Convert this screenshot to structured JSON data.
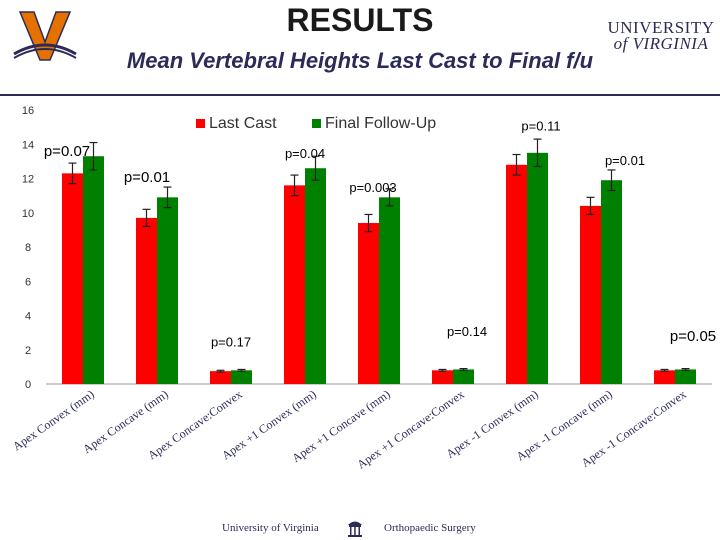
{
  "header": {
    "title": "RESULTS",
    "subtitle": "Mean Vertebral Heights Last Cast to Final f/u",
    "wordmark_line1": "UNIVERSITY",
    "wordmark_line2": "of VIRGINIA"
  },
  "footer": {
    "left": "University of Virginia",
    "right": "Orthopaedic Surgery"
  },
  "colors": {
    "last_cast": "#ff0000",
    "final_followup": "#008000",
    "navy": "#2b2b5a",
    "orange": "#e57200"
  },
  "chart_data": {
    "type": "bar",
    "categories": [
      "Apex Convex (mm)",
      "Apex Concave (mm)",
      "Apex Concave:Convex",
      "Apex +1 Convex (mm)",
      "Apex +1 Concave (mm)",
      "Apex +1 Concave:Convex",
      "Apex -1 Convex (mm)",
      "Apex -1 Concave (mm)",
      "Apex -1 Concave:Convex"
    ],
    "series": [
      {
        "name": "Last Cast",
        "values": [
          12.3,
          9.7,
          0.75,
          11.6,
          9.4,
          0.8,
          12.8,
          10.4,
          0.8
        ],
        "errors": [
          0.6,
          0.5,
          0.05,
          0.6,
          0.5,
          0.05,
          0.6,
          0.5,
          0.05
        ]
      },
      {
        "name": "Final Follow-Up",
        "values": [
          13.3,
          10.9,
          0.8,
          12.6,
          10.9,
          0.85,
          13.5,
          11.9,
          0.85
        ],
        "errors": [
          0.8,
          0.6,
          0.05,
          0.7,
          0.5,
          0.05,
          0.8,
          0.6,
          0.05
        ]
      }
    ],
    "annotations": [
      "p=0.07",
      "p=0.01",
      "p=0.17",
      "p=0.04",
      "p=0.003",
      "p=0.14",
      "p=0.11",
      "p=0.01",
      "p=0.05"
    ],
    "ylim": [
      0,
      16
    ],
    "yticks": [
      0,
      2,
      4,
      6,
      8,
      10,
      12,
      14,
      16
    ],
    "grid": false,
    "legend": "top-center"
  }
}
